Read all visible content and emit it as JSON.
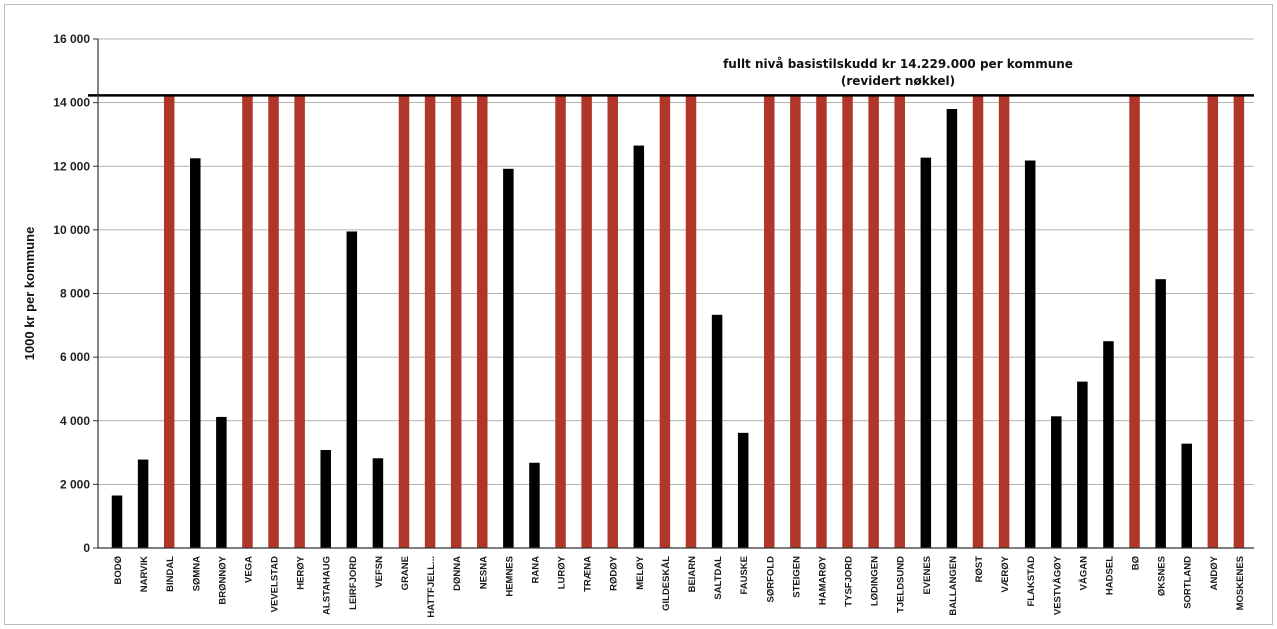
{
  "chart_data": {
    "type": "bar",
    "title": "",
    "xlabel": "",
    "ylabel": "1000 kr per kommune",
    "ylim": [
      0,
      16000
    ],
    "yticks": [
      0,
      2000,
      4000,
      6000,
      8000,
      10000,
      12000,
      14000,
      16000
    ],
    "ytick_labels": [
      "0",
      "2 000",
      "4 000",
      "6 000",
      "8 000",
      "10 000",
      "12 000",
      "14 000",
      "16 000"
    ],
    "grid": true,
    "reference_line": {
      "value": 14229,
      "color": "#000000"
    },
    "annotation": [
      "fullt nivå basistilskudd kr 14.229.000 per kommune",
      "(revidert nøkkel)"
    ],
    "colors": {
      "full": "#b0362a",
      "partial": "#000000"
    },
    "categories": [
      "BODØ",
      "NARVIK",
      "BINDAL",
      "SØMNA",
      "BRØNNØY",
      "VEGA",
      "VEVELSTAD",
      "HERØY",
      "ALSTAHAUG",
      "LEIRFJORD",
      "VEFSN",
      "GRANE",
      "HATTFJELL...",
      "DØNNA",
      "NESNA",
      "HEMNES",
      "RANA",
      "LURØY",
      "TRÆNA",
      "RØDØY",
      "MELØY",
      "GILDESKÅL",
      "BEIARN",
      "SALTDAL",
      "FAUSKE",
      "SØRFOLD",
      "STEIGEN",
      "HAMARØY",
      "TYSFJORD",
      "LØDINGEN",
      "TJELDSUND",
      "EVENES",
      "BALLANGEN",
      "RØST",
      "VÆRØY",
      "FLAKSTAD",
      "VESTVÅGØY",
      "VÅGAN",
      "HADSEL",
      "BØ",
      "ØKSNES",
      "SORTLAND",
      "ANDØY",
      "MOSKENES"
    ],
    "values": [
      1650,
      2780,
      14229,
      12250,
      4120,
      14229,
      14229,
      14229,
      3080,
      9950,
      2820,
      14229,
      14229,
      14229,
      14229,
      11920,
      2680,
      14229,
      14229,
      14229,
      12650,
      14229,
      14229,
      7330,
      3620,
      14229,
      14229,
      14229,
      14229,
      14229,
      14229,
      12270,
      13800,
      14229,
      14229,
      12180,
      4140,
      5230,
      6500,
      14229,
      8450,
      3280,
      14229,
      14229
    ],
    "full_level": [
      false,
      false,
      true,
      false,
      false,
      true,
      true,
      true,
      false,
      false,
      false,
      true,
      true,
      true,
      true,
      false,
      false,
      true,
      true,
      true,
      false,
      true,
      true,
      false,
      false,
      true,
      true,
      true,
      true,
      true,
      true,
      false,
      false,
      true,
      true,
      false,
      false,
      false,
      false,
      true,
      false,
      false,
      true,
      true
    ]
  }
}
